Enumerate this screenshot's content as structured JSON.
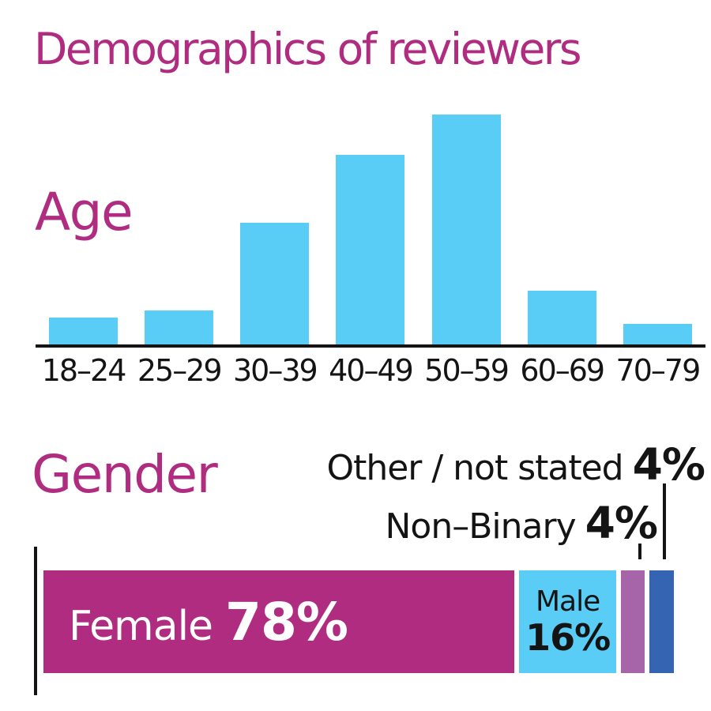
{
  "title": "Demographics of reviewers",
  "colors": {
    "accent_magenta": "#B02C80",
    "bar_light_blue": "#59CDF5",
    "nonbinary_purple": "#A565A8",
    "other_dark_blue": "#3565B2",
    "text_black": "#141414",
    "label_on_female": "#ffffff"
  },
  "chart_data": [
    {
      "type": "bar",
      "title": "Age",
      "categories": [
        "18–24",
        "25–29",
        "30–39",
        "40–49",
        "50–59",
        "60–69",
        "70–79"
      ],
      "values": [
        4,
        5,
        18,
        28,
        34,
        8,
        3
      ],
      "values_estimated": true,
      "units": "% of reviewers (no value labels shown on chart)",
      "ylim": [
        0,
        34
      ],
      "bar_color": "#59CDF5",
      "grid": false,
      "axis_line": "x only"
    },
    {
      "type": "bar",
      "subtype": "horizontal-stacked",
      "title": "Gender",
      "categories": [
        "Female",
        "Male",
        "Non–Binary",
        "Other / not stated"
      ],
      "values": [
        78,
        16,
        4,
        4
      ],
      "value_labels": [
        "Female 78%",
        "Male 16%",
        "Non–Binary 4%",
        "Other / not stated 4%"
      ],
      "colors": [
        "#B02C80",
        "#59CDF5",
        "#A565A8",
        "#3565B2"
      ],
      "legend_position": "callouts above bar for small segments, inline labels for large segments"
    }
  ],
  "gender_display": {
    "female_name": "Female",
    "female_pct": "78%",
    "male_name": "Male",
    "male_pct": "16%",
    "nonbinary_callout_label": "Non–Binary",
    "nonbinary_callout_value": "4%",
    "other_callout_label": "Other / not stated",
    "other_callout_value": "4%"
  }
}
